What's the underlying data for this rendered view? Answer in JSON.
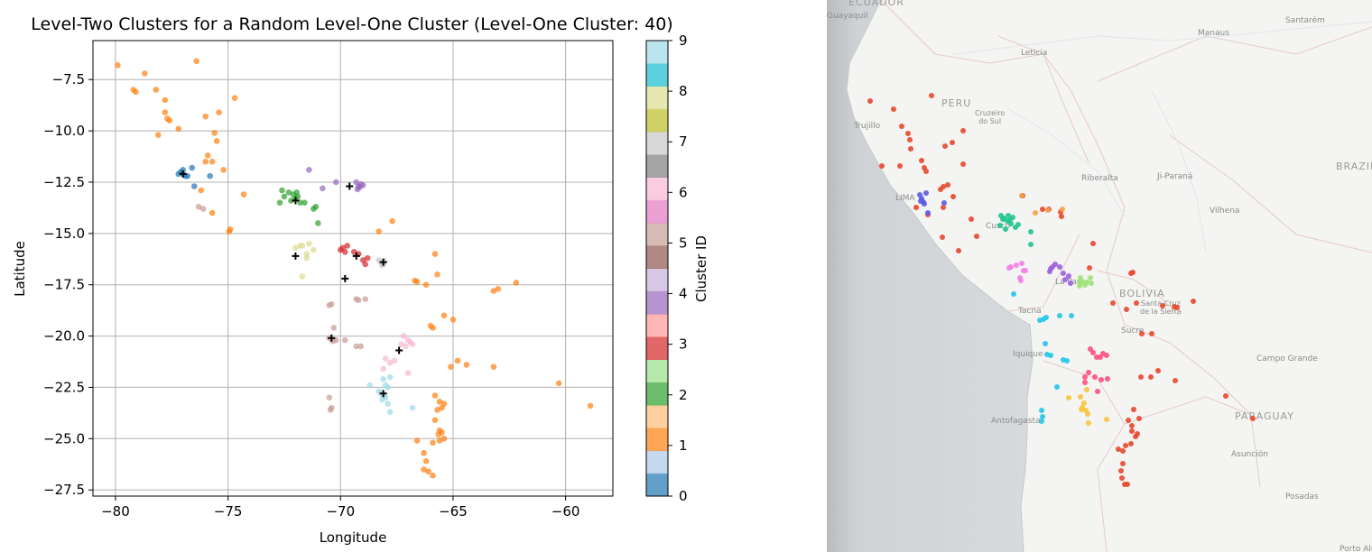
{
  "chart_data": {
    "type": "scatter",
    "title": "Level-Two Clusters for a Random Level-One Cluster (Level-One Cluster: 40)",
    "xlabel": "Longitude",
    "ylabel": "Latitude",
    "xlim": [
      -81,
      -57.9
    ],
    "ylim": [
      -27.8,
      -5.6
    ],
    "xticks": [
      -80,
      -75,
      -70,
      -65,
      -60
    ],
    "yticks": [
      -7.5,
      -10.0,
      -12.5,
      -15.0,
      -17.5,
      -20.0,
      -22.5,
      -25.0,
      -27.5
    ],
    "xtick_labels": [
      "−80",
      "−75",
      "−70",
      "−65",
      "−60"
    ],
    "ytick_labels": [
      "−7.5",
      "−10.0",
      "−12.5",
      "−15.0",
      "−17.5",
      "−20.0",
      "−22.5",
      "−25.0",
      "−27.5"
    ],
    "grid": true,
    "colorbar": {
      "label": "Cluster ID",
      "ticks": [
        "0",
        "1",
        "2",
        "3",
        "4",
        "5",
        "6",
        "7",
        "8",
        "9"
      ],
      "colors": [
        "#1f77b4",
        "#aec7e8",
        "#ff7f0e",
        "#ffbb78",
        "#2ca02c",
        "#98df8a",
        "#d62728",
        "#ff9896",
        "#9467bd",
        "#c5b0d5",
        "#8c564b",
        "#c49c94",
        "#e377c2",
        "#f7b6d2",
        "#7f7f7f",
        "#c7c7c7",
        "#bcbd22",
        "#dbdb8d",
        "#17becf",
        "#9edae5"
      ]
    },
    "series": [
      {
        "cluster": 0,
        "color": "#1f77b4",
        "points": [
          [
            -77.1,
            -12.0
          ],
          [
            -77.0,
            -12.1
          ],
          [
            -76.9,
            -12.2
          ],
          [
            -77.2,
            -12.1
          ],
          [
            -77.0,
            -11.9
          ],
          [
            -76.8,
            -12.2
          ],
          [
            -76.6,
            -11.8
          ],
          [
            -76.5,
            -12.7
          ],
          [
            -75.8,
            -12.2
          ]
        ]
      },
      {
        "cluster": 1,
        "color": "#ff7f0e",
        "points": [
          [
            -79.9,
            -6.8
          ],
          [
            -78.7,
            -7.2
          ],
          [
            -79.2,
            -8.0
          ],
          [
            -79.1,
            -8.1
          ],
          [
            -78.2,
            -8.0
          ],
          [
            -76.4,
            -6.6
          ],
          [
            -77.8,
            -8.5
          ],
          [
            -77.8,
            -9.1
          ],
          [
            -77.7,
            -9.4
          ],
          [
            -77.6,
            -9.5
          ],
          [
            -77.2,
            -9.9
          ],
          [
            -78.1,
            -10.2
          ],
          [
            -76.0,
            -9.3
          ],
          [
            -75.4,
            -9.1
          ],
          [
            -74.7,
            -8.4
          ],
          [
            -75.6,
            -10.1
          ],
          [
            -75.5,
            -10.5
          ],
          [
            -75.9,
            -11.2
          ],
          [
            -75.7,
            -11.5
          ],
          [
            -76.0,
            -11.5
          ],
          [
            -75.2,
            -11.9
          ],
          [
            -76.2,
            -12.9
          ],
          [
            -75.7,
            -14.0
          ],
          [
            -74.3,
            -13.1
          ],
          [
            -74.9,
            -14.8
          ],
          [
            -74.95,
            -14.9
          ],
          [
            -68.3,
            -14.9
          ],
          [
            -67.7,
            -14.4
          ],
          [
            -65.8,
            -16.0
          ],
          [
            -66.7,
            -17.3
          ],
          [
            -66.6,
            -17.35
          ],
          [
            -65.7,
            -17.0
          ],
          [
            -66.2,
            -17.5
          ],
          [
            -63.2,
            -17.8
          ],
          [
            -63.0,
            -17.7
          ],
          [
            -62.2,
            -17.4
          ],
          [
            -65.4,
            -19.0
          ],
          [
            -65.0,
            -19.2
          ],
          [
            -66.0,
            -19.5
          ],
          [
            -65.9,
            -19.6
          ],
          [
            -64.8,
            -21.2
          ],
          [
            -65.1,
            -21.5
          ],
          [
            -64.4,
            -21.4
          ],
          [
            -63.2,
            -21.5
          ],
          [
            -60.3,
            -22.3
          ],
          [
            -58.9,
            -23.4
          ],
          [
            -65.8,
            -22.9
          ],
          [
            -65.6,
            -23.2
          ],
          [
            -65.4,
            -23.3
          ],
          [
            -65.7,
            -23.6
          ],
          [
            -65.5,
            -23.5
          ],
          [
            -65.8,
            -24.1
          ],
          [
            -65.6,
            -24.6
          ],
          [
            -65.5,
            -24.7
          ],
          [
            -65.65,
            -24.8
          ],
          [
            -66.6,
            -25.1
          ],
          [
            -65.9,
            -25.2
          ],
          [
            -65.6,
            -25.1
          ],
          [
            -65.4,
            -25.0
          ],
          [
            -66.3,
            -25.7
          ],
          [
            -66.2,
            -26.1
          ],
          [
            -66.3,
            -26.5
          ],
          [
            -66.1,
            -26.6
          ],
          [
            -65.9,
            -26.8
          ]
        ]
      },
      {
        "cluster": 2,
        "color": "#2ca02c",
        "points": [
          [
            -72.6,
            -12.9
          ],
          [
            -72.3,
            -13.0
          ],
          [
            -72.1,
            -13.1
          ],
          [
            -71.9,
            -13.2
          ],
          [
            -72.5,
            -13.2
          ],
          [
            -72.2,
            -13.4
          ],
          [
            -71.8,
            -13.5
          ],
          [
            -71.6,
            -13.5
          ],
          [
            -72.0,
            -13.3
          ],
          [
            -71.95,
            -13.0
          ],
          [
            -72.7,
            -13.5
          ],
          [
            -71.2,
            -13.8
          ],
          [
            -71.1,
            -13.7
          ],
          [
            -71.0,
            -14.5
          ]
        ]
      },
      {
        "cluster": 3,
        "color": "#d62728",
        "points": [
          [
            -70.0,
            -15.8
          ],
          [
            -69.9,
            -15.7
          ],
          [
            -69.8,
            -15.9
          ],
          [
            -69.7,
            -15.6
          ],
          [
            -69.4,
            -15.9
          ],
          [
            -69.2,
            -16.0
          ],
          [
            -68.8,
            -16.2
          ],
          [
            -69.0,
            -16.3
          ],
          [
            -68.9,
            -16.5
          ]
        ]
      },
      {
        "cluster": 4,
        "color": "#9467bd",
        "points": [
          [
            -71.4,
            -11.9
          ],
          [
            -70.8,
            -12.8
          ],
          [
            -70.2,
            -12.5
          ],
          [
            -69.3,
            -12.5
          ],
          [
            -69.2,
            -12.7
          ],
          [
            -69.1,
            -12.6
          ],
          [
            -69.0,
            -12.65
          ],
          [
            -69.25,
            -12.85
          ],
          [
            -69.15,
            -12.75
          ]
        ]
      },
      {
        "cluster": 5,
        "color": "#c49c94",
        "points": [
          [
            -76.3,
            -13.7
          ],
          [
            -76.1,
            -13.8
          ],
          [
            -70.5,
            -18.5
          ],
          [
            -70.4,
            -18.45
          ],
          [
            -69.3,
            -18.2
          ],
          [
            -69.2,
            -18.25
          ],
          [
            -68.9,
            -18.2
          ],
          [
            -70.3,
            -19.6
          ],
          [
            -70.2,
            -20.2
          ],
          [
            -69.8,
            -20.2
          ],
          [
            -70.5,
            -20.1
          ],
          [
            -70.35,
            -20.25
          ],
          [
            -69.3,
            -20.5
          ],
          [
            -69.1,
            -20.5
          ],
          [
            -70.5,
            -23.0
          ],
          [
            -70.4,
            -23.5
          ],
          [
            -70.45,
            -23.6
          ]
        ]
      },
      {
        "cluster": 6,
        "color": "#f7b6d2",
        "points": [
          [
            -68.0,
            -21.1
          ],
          [
            -67.8,
            -21.3
          ],
          [
            -68.1,
            -21.6
          ],
          [
            -67.6,
            -21.2
          ],
          [
            -67.0,
            -21.8
          ],
          [
            -67.2,
            -20.0
          ],
          [
            -67.3,
            -20.4
          ],
          [
            -66.9,
            -20.3
          ],
          [
            -67.1,
            -20.5
          ],
          [
            -67.0,
            -20.2
          ],
          [
            -66.8,
            -20.4
          ]
        ]
      },
      {
        "cluster": 7,
        "color": "#c7c7c7",
        "points": [
          [
            -68.3,
            -16.3
          ],
          [
            -68.2,
            -16.4
          ],
          [
            -68.1,
            -16.5
          ],
          [
            -68.05,
            -16.35
          ],
          [
            -68.15,
            -16.55
          ]
        ]
      },
      {
        "cluster": 8,
        "color": "#dbdb8d",
        "points": [
          [
            -72.0,
            -15.7
          ],
          [
            -71.8,
            -15.6
          ],
          [
            -71.7,
            -15.6
          ],
          [
            -71.4,
            -15.5
          ],
          [
            -71.2,
            -15.8
          ],
          [
            -71.5,
            -16.0
          ],
          [
            -71.5,
            -16.2
          ],
          [
            -71.7,
            -17.1
          ]
        ]
      },
      {
        "cluster": 9,
        "color": "#9edae5",
        "points": [
          [
            -68.1,
            -22.1
          ],
          [
            -68.0,
            -22.4
          ],
          [
            -68.2,
            -22.8
          ],
          [
            -68.1,
            -22.9
          ],
          [
            -68.0,
            -23.0
          ],
          [
            -68.3,
            -22.7
          ],
          [
            -67.9,
            -22.5
          ],
          [
            -68.15,
            -23.1
          ],
          [
            -67.9,
            -23.3
          ],
          [
            -67.8,
            -22.0
          ],
          [
            -68.7,
            -22.4
          ],
          [
            -67.8,
            -23.7
          ],
          [
            -66.8,
            -23.5
          ]
        ]
      }
    ],
    "centroids": [
      [
        -77.0,
        -12.1
      ],
      [
        -69.6,
        -12.7
      ],
      [
        -72.0,
        -13.4
      ],
      [
        -69.3,
        -16.1
      ],
      [
        -72.0,
        -16.1
      ],
      [
        -69.8,
        -17.2
      ],
      [
        -68.1,
        -16.4
      ],
      [
        -70.4,
        -20.1
      ],
      [
        -67.4,
        -20.7
      ],
      [
        -68.1,
        -22.8
      ]
    ]
  },
  "map": {
    "labels": {
      "ecuador": "ECUADOR",
      "guayaquil": "Guayaquil",
      "manaus": "Manaus",
      "santarem": "Santarém",
      "leticia": "Leticia",
      "peru": "PERU",
      "cruzeiro": "Cruzeiro\ndo Sul",
      "trujillo": "Trujillo",
      "brazil": "BRAZIL",
      "ribeiralta": "Riberalta",
      "jiparana": "Ji-Paraná",
      "lima": "LIMA",
      "vilhena": "Vilhena",
      "cusco": "Cusco",
      "lapaz": "La Paz",
      "bolivia": "BOLIVIA",
      "santacruz": "Santa Cruz\nde la Sierra",
      "tacna": "Tacna",
      "sucre": "Sucre",
      "iquique": "Iquique",
      "campogrande": "Campo Grande",
      "antofagasta": "Antofagasta",
      "paraguay": "PARAGUAY",
      "asuncion": "Asunción",
      "posadas": "Posadas",
      "portoalegre": "Porto Ale"
    },
    "dot_colors": {
      "orange": "#e8472c",
      "blue": "#5b5ce6",
      "green": "#1fc48f",
      "purple": "#9b5fe0",
      "magenta": "#f47ee8",
      "yellow": "#f9c33a",
      "cyan": "#23c6e8",
      "pink": "#fc4f7e",
      "lightgreen": "#a0e27a",
      "lightorange": "#f7a044"
    }
  }
}
